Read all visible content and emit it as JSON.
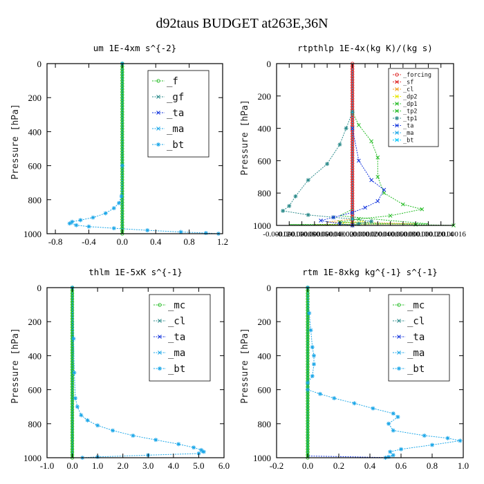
{
  "suptitle": "d92taus  BUDGET at263E,36N",
  "colors": {
    "green": "#22bb22",
    "teal": "#2a8a8a",
    "blue": "#1133dd",
    "sky": "#1aa6e8",
    "cyan": "#00c8ff",
    "red": "#dd2222",
    "orange": "#f0a020",
    "yellow": "#e6e600",
    "axis": "#000000"
  },
  "chart_data": [
    {
      "id": "um",
      "type": "line",
      "title": "um   1E-4xm s^{-2}",
      "xlabel": "",
      "ylabel": "Pressure [hPa]",
      "xlim": [
        -0.9,
        1.2
      ],
      "ylim": [
        1000,
        0
      ],
      "xticks": [
        -0.8,
        -0.4,
        0.0,
        0.4,
        0.8,
        1.2
      ],
      "xtick_labels": [
        "-0.8",
        "-0.4",
        "0.0",
        "0.4",
        "0.8",
        "1.2"
      ],
      "yticks": [
        0,
        200,
        400,
        600,
        800,
        1000
      ],
      "ytick_labels": [
        "0",
        "200",
        "400",
        "600",
        "800",
        "1000"
      ],
      "legend": {
        "position": "top-right",
        "small": false,
        "entries": [
          "_f",
          "_gf",
          "_ta",
          "_ma",
          "_bt"
        ]
      },
      "series": [
        {
          "name": "_f",
          "color": "green",
          "thick": true,
          "marker": "circle",
          "points": [
            [
              0,
              0
            ],
            [
              0,
              1000
            ]
          ]
        },
        {
          "name": "_gf",
          "color": "teal",
          "thick": false,
          "marker": "none",
          "points": [
            [
              0,
              0
            ],
            [
              0,
              1000
            ]
          ]
        },
        {
          "name": "_ta",
          "color": "blue",
          "thick": false,
          "marker": "none",
          "points": [
            [
              0,
              0
            ],
            [
              0,
              1000
            ]
          ]
        },
        {
          "name": "_ma",
          "color": "sky",
          "thick": false,
          "marker": "none",
          "points": [
            [
              0,
              0
            ],
            [
              0,
              1000
            ]
          ]
        },
        {
          "name": "_bt",
          "color": "sky",
          "thick": false,
          "marker": "star",
          "points": [
            [
              0,
              0
            ],
            [
              0,
              600
            ],
            [
              -0.01,
              780
            ],
            [
              -0.04,
              820
            ],
            [
              -0.1,
              850
            ],
            [
              -0.2,
              880
            ],
            [
              -0.35,
              905
            ],
            [
              -0.5,
              920
            ],
            [
              -0.6,
              930
            ],
            [
              -0.63,
              940
            ],
            [
              -0.55,
              950
            ],
            [
              -0.4,
              958
            ],
            [
              -0.1,
              968
            ],
            [
              0.3,
              980
            ],
            [
              0.7,
              990
            ],
            [
              1.0,
              996
            ],
            [
              1.15,
              1000
            ]
          ]
        }
      ]
    },
    {
      "id": "rtpthlp",
      "type": "line",
      "title": "rtpthlp   1E-4x(kg K)/(kg s)",
      "xlabel": "",
      "ylabel": "Pressure [hPa]",
      "xlim": [
        -0.00012,
        0.00016
      ],
      "ylim": [
        1000,
        0
      ],
      "xticks": [
        -0.00012,
        -0.0001,
        -8e-05,
        -6e-05,
        -4e-05,
        -2e-05,
        0.0,
        2e-05,
        4e-05,
        6e-05,
        8e-05,
        0.0001,
        0.00012,
        0.00014,
        0.00016
      ],
      "xtick_labels": [
        "-0.00012",
        "-0.00010",
        "-0.00008",
        "-0.00006",
        "-0.00004",
        "-0.00002",
        "0.00000",
        "0.00002",
        "0.00004",
        "0.00006",
        "0.00008",
        "0.00010",
        "0.00012",
        "0.00014",
        "0.00016"
      ],
      "yticks": [
        0,
        200,
        400,
        600,
        800,
        1000
      ],
      "ytick_labels": [
        "0",
        "200",
        "400",
        "600",
        "800",
        "1000"
      ],
      "legend": {
        "position": "top-right",
        "small": true,
        "entries": [
          "_forcing",
          "_sf",
          "_cl",
          "_dp2",
          "_dp1",
          "_tp2",
          "_tp1",
          "_ta",
          "_ma",
          "_bt"
        ]
      },
      "series": [
        {
          "name": "_forcing",
          "color": "red",
          "thick": true,
          "marker": "circle",
          "points": [
            [
              0,
              0
            ],
            [
              0,
              1000
            ]
          ]
        },
        {
          "name": "_sf",
          "color": "red",
          "thick": false,
          "marker": "none",
          "points": [
            [
              0,
              980
            ],
            [
              0,
              1000
            ]
          ]
        },
        {
          "name": "_cl",
          "color": "orange",
          "thick": false,
          "marker": "none",
          "points": [
            [
              0,
              960
            ],
            [
              -4e-05,
              980
            ],
            [
              5e-05,
              985
            ],
            [
              0.0001,
              990
            ],
            [
              -6e-05,
              995
            ],
            [
              0,
              1000
            ]
          ]
        },
        {
          "name": "_dp2",
          "color": "yellow",
          "thick": false,
          "marker": "none",
          "points": [
            [
              0,
              960
            ],
            [
              2e-05,
              975
            ],
            [
              -2e-05,
              985
            ],
            [
              0,
              1000
            ]
          ]
        },
        {
          "name": "_dp1",
          "color": "green",
          "thick": false,
          "marker": "none",
          "points": [
            [
              0,
              900
            ],
            [
              -2e-05,
              940
            ],
            [
              6e-05,
              970
            ],
            [
              0.00012,
              990
            ],
            [
              -0.0001,
              995
            ],
            [
              0,
              1000
            ]
          ]
        },
        {
          "name": "_tp2",
          "color": "green",
          "thick": false,
          "marker": "cross",
          "points": [
            [
              0,
              300
            ],
            [
              1e-05,
              380
            ],
            [
              3e-05,
              480
            ],
            [
              4e-05,
              580
            ],
            [
              4e-05,
              700
            ],
            [
              5e-05,
              800
            ],
            [
              8e-05,
              870
            ],
            [
              0.00011,
              900
            ],
            [
              6e-05,
              940
            ],
            [
              1e-05,
              960
            ],
            [
              -2e-05,
              980
            ],
            [
              0.0001,
              995
            ],
            [
              0.00016,
              1000
            ]
          ]
        },
        {
          "name": "_tp1",
          "color": "teal",
          "thick": false,
          "marker": "star",
          "points": [
            [
              0,
              300
            ],
            [
              -1e-05,
              400
            ],
            [
              -2e-05,
              500
            ],
            [
              -4e-05,
              620
            ],
            [
              -7e-05,
              720
            ],
            [
              -9e-05,
              820
            ],
            [
              -0.0001,
              880
            ],
            [
              -0.00011,
              910
            ],
            [
              -7e-05,
              935
            ],
            [
              -3e-05,
              950
            ],
            [
              0,
              960
            ],
            [
              3e-05,
              975
            ],
            [
              1e-05,
              990
            ],
            [
              0,
              1000
            ]
          ]
        },
        {
          "name": "_ta",
          "color": "blue",
          "thick": false,
          "marker": "cross",
          "points": [
            [
              0,
              400
            ],
            [
              1e-05,
              600
            ],
            [
              3e-05,
              720
            ],
            [
              5e-05,
              780
            ],
            [
              4e-05,
              850
            ],
            [
              2e-05,
              890
            ],
            [
              0,
              920
            ],
            [
              -3e-05,
              950
            ],
            [
              -5e-05,
              970
            ],
            [
              -2e-05,
              990
            ],
            [
              0,
              1000
            ]
          ]
        },
        {
          "name": "_ma",
          "color": "sky",
          "thick": false,
          "marker": "none",
          "points": [
            [
              0,
              0
            ],
            [
              0,
              1000
            ]
          ]
        },
        {
          "name": "_bt",
          "color": "cyan",
          "thick": false,
          "marker": "none",
          "points": [
            [
              0,
              0
            ],
            [
              0,
              1000
            ]
          ]
        }
      ]
    },
    {
      "id": "thlm",
      "type": "line",
      "title": "thlm   1E-5xK s^{-1}",
      "xlabel": "",
      "ylabel": "Pressure [hPa]",
      "xlim": [
        -1.0,
        6.0
      ],
      "ylim": [
        1000,
        0
      ],
      "xticks": [
        -1.0,
        0.0,
        1.0,
        2.0,
        3.0,
        4.0,
        5.0,
        6.0
      ],
      "xtick_labels": [
        "-1.0",
        "0.0",
        "1.0",
        "2.0",
        "3.0",
        "4.0",
        "5.0",
        "6.0"
      ],
      "yticks": [
        0,
        200,
        400,
        600,
        800,
        1000
      ],
      "ytick_labels": [
        "0",
        "200",
        "400",
        "600",
        "800",
        "1000"
      ],
      "legend": {
        "position": "top-right",
        "small": false,
        "entries": [
          "_mc",
          "_cl",
          "_ta",
          "_ma",
          "_bt"
        ]
      },
      "series": [
        {
          "name": "_mc",
          "color": "green",
          "thick": true,
          "marker": "circle",
          "points": [
            [
              0,
              0
            ],
            [
              0,
              1000
            ]
          ]
        },
        {
          "name": "_cl",
          "color": "teal",
          "thick": false,
          "marker": "none",
          "points": [
            [
              0,
              0
            ],
            [
              0,
              1000
            ]
          ]
        },
        {
          "name": "_ta",
          "color": "blue",
          "thick": false,
          "marker": "none",
          "points": [
            [
              0,
              0
            ],
            [
              0,
              1000
            ]
          ]
        },
        {
          "name": "_ma",
          "color": "sky",
          "thick": false,
          "marker": "none",
          "points": [
            [
              0,
              0
            ],
            [
              0,
              1000
            ]
          ]
        },
        {
          "name": "_bt",
          "color": "sky",
          "thick": false,
          "marker": "star",
          "points": [
            [
              0,
              0
            ],
            [
              0.05,
              300
            ],
            [
              0.08,
              500
            ],
            [
              0.12,
              650
            ],
            [
              0.2,
              700
            ],
            [
              0.35,
              750
            ],
            [
              0.6,
              780
            ],
            [
              1.0,
              810
            ],
            [
              1.6,
              840
            ],
            [
              2.4,
              870
            ],
            [
              3.3,
              895
            ],
            [
              4.2,
              920
            ],
            [
              4.8,
              940
            ],
            [
              5.1,
              955
            ],
            [
              5.2,
              965
            ],
            [
              5.0,
              975
            ],
            [
              3.0,
              985
            ],
            [
              1.0,
              995
            ],
            [
              0.4,
              1000
            ]
          ]
        }
      ]
    },
    {
      "id": "rtm",
      "type": "line",
      "title": "rtm   1E-8xkg kg^{-1} s^{-1}",
      "xlabel": "",
      "ylabel": "Pressure [hPa]",
      "xlim": [
        -0.2,
        1.0
      ],
      "ylim": [
        1000,
        0
      ],
      "xticks": [
        -0.2,
        0.0,
        0.2,
        0.4,
        0.6,
        0.8,
        1.0
      ],
      "xtick_labels": [
        "-0.2",
        "0.0",
        "0.2",
        "0.4",
        "0.6",
        "0.8",
        "1.0"
      ],
      "yticks": [
        0,
        200,
        400,
        600,
        800,
        1000
      ],
      "ytick_labels": [
        "0",
        "200",
        "400",
        "600",
        "800",
        "1000"
      ],
      "legend": {
        "position": "top-right",
        "small": false,
        "entries": [
          "_mc",
          "_cl",
          "_ta",
          "_ma",
          "_bt"
        ]
      },
      "series": [
        {
          "name": "_mc",
          "color": "green",
          "thick": true,
          "marker": "circle",
          "points": [
            [
              0,
              0
            ],
            [
              0,
              1000
            ]
          ]
        },
        {
          "name": "_cl",
          "color": "teal",
          "thick": false,
          "marker": "none",
          "points": [
            [
              0,
              0
            ],
            [
              0,
              1000
            ]
          ]
        },
        {
          "name": "_ta",
          "color": "blue",
          "thick": false,
          "marker": "none",
          "points": [
            [
              0,
              0
            ],
            [
              0,
              990
            ],
            [
              0.3,
              995
            ],
            [
              0.55,
              1000
            ]
          ]
        },
        {
          "name": "_ma",
          "color": "sky",
          "thick": false,
          "marker": "none",
          "points": [
            [
              0,
              0
            ],
            [
              0,
              1000
            ]
          ]
        },
        {
          "name": "_bt",
          "color": "sky",
          "thick": false,
          "marker": "star",
          "points": [
            [
              0,
              0
            ],
            [
              0.01,
              150
            ],
            [
              0.02,
              250
            ],
            [
              0.03,
              350
            ],
            [
              0.04,
              400
            ],
            [
              0.04,
              450
            ],
            [
              0.03,
              520
            ],
            [
              0.0,
              560
            ],
            [
              0.0,
              600
            ],
            [
              0.08,
              625
            ],
            [
              0.17,
              650
            ],
            [
              0.3,
              680
            ],
            [
              0.42,
              710
            ],
            [
              0.55,
              740
            ],
            [
              0.58,
              760
            ],
            [
              0.52,
              800
            ],
            [
              0.55,
              840
            ],
            [
              0.75,
              870
            ],
            [
              0.9,
              885
            ],
            [
              0.98,
              900
            ],
            [
              0.8,
              925
            ],
            [
              0.6,
              950
            ],
            [
              0.53,
              965
            ],
            [
              0.55,
              985
            ],
            [
              0.52,
              995
            ],
            [
              0.5,
              1000
            ]
          ]
        }
      ]
    }
  ]
}
